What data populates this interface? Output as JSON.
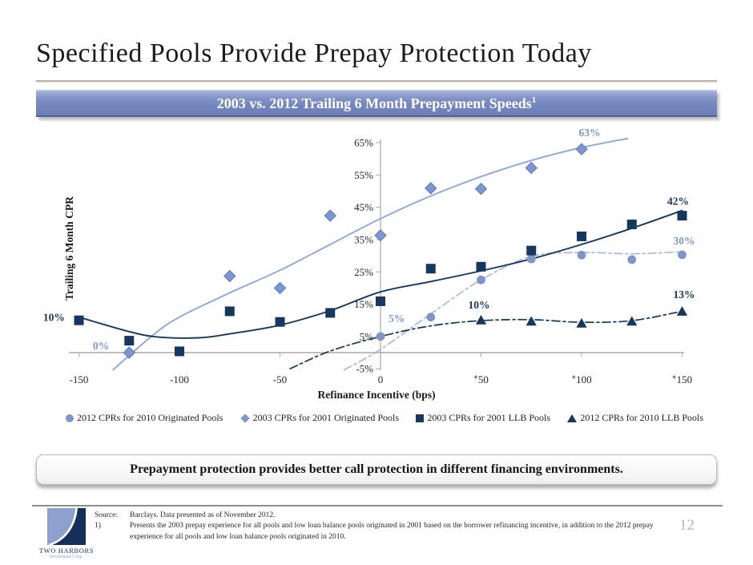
{
  "slide": {
    "title": "Specified Pools Provide Prepay Protection Today",
    "banner": "2003 vs. 2012 Trailing 6 Month Prepayment Speeds",
    "banner_superscript": "1",
    "message": "Prepayment protection provides better call protection in different financing environments.",
    "page_number": "12"
  },
  "footer": {
    "source_label": "Source:",
    "source_text": "Barclays. Data presented as of November 2012.",
    "note_label": "1)",
    "note_text": "Presents the 2003 prepay experience for all pools and low loan balance pools originated in 2001 based on the borrower refinancing incentive, in addition to the 2012 prepay experience for all pools and low loan balance pools originated in 2010.",
    "logo_title": "TWO HARBORS",
    "logo_subtitle": "Investment Corp."
  },
  "theme": {
    "navy": "#17375e",
    "light": "#8098d0",
    "light_marker": "#8094c8",
    "diamond_fill": "#7e96d0",
    "diamond_stroke": "#5b79b4",
    "light_line": "#8fa5dc",
    "light_dash_line": "#aab8e4",
    "axis": "#a8a8a8",
    "tick_text": "#262626",
    "axis_title": "#1a1a1a"
  },
  "chart_data": {
    "type": "scatter",
    "title": "2003 vs. 2012 Trailing 6 Month Prepayment Speeds",
    "xlabel": "Refinance Incentive (bps)",
    "ylabel": "Trailing 6 Month CPR",
    "x_range_bps": [
      -150,
      150
    ],
    "y_range_pct": [
      -5,
      65
    ],
    "grid": false,
    "legend_position": "bottom",
    "x_axis": {
      "from": -155,
      "to": 151
    },
    "y_axis": {
      "top": 66,
      "bottom": -5.5
    },
    "x_ticks": [
      {
        "bps": -150,
        "label": "-150"
      },
      {
        "bps": -100,
        "label": "-100"
      },
      {
        "bps": -50,
        "label": "-50"
      },
      {
        "bps": 0,
        "label": "0"
      },
      {
        "bps": 50,
        "label": "+50"
      },
      {
        "bps": 100,
        "label": "+100"
      },
      {
        "bps": 150,
        "label": "+150"
      }
    ],
    "y_ticks": [
      {
        "value": 65,
        "label": "65%"
      },
      {
        "value": 55,
        "label": "55%"
      },
      {
        "value": 45,
        "label": "45%"
      },
      {
        "value": 35,
        "label": "35%"
      },
      {
        "value": 25,
        "label": "25%"
      },
      {
        "value": 15,
        "label": "15%"
      },
      {
        "value": 5,
        "label": "5%"
      },
      {
        "value": -5,
        "label": "-5%"
      }
    ],
    "series": [
      {
        "id": "cpr2012-originated",
        "name": "2012 CPRs for 2010 Originated Pools",
        "marker": "circle",
        "color": "#8094c8",
        "trend_color": "#aab8e4",
        "trend_dash": "10 4 3 4",
        "points": [
          [
            0,
            5
          ],
          [
            25,
            11
          ],
          [
            50,
            22.5
          ],
          [
            75,
            29
          ],
          [
            100,
            30.2
          ],
          [
            125,
            28.8
          ],
          [
            150,
            30.3
          ]
        ],
        "trend": [
          [
            -18,
            -5.3
          ],
          [
            0,
            1
          ],
          [
            25,
            12
          ],
          [
            50,
            22.5
          ],
          [
            75,
            29.8
          ],
          [
            100,
            31
          ],
          [
            125,
            30.6
          ],
          [
            150,
            31.2
          ]
        ]
      },
      {
        "id": "cpr2003-originated",
        "name": "2003 CPRs for 2001 Originated Pools",
        "marker": "diamond",
        "color": "#7e96d0",
        "stroke": "#5b79b4",
        "trend_color": "#8fa5dc",
        "trend_dash": "",
        "points": [
          [
            -125,
            0
          ],
          [
            -75,
            23.7
          ],
          [
            -50,
            20
          ],
          [
            -25,
            42.4
          ],
          [
            0,
            36.3
          ],
          [
            25,
            50.9
          ],
          [
            50,
            50.7
          ],
          [
            75,
            57.2
          ],
          [
            100,
            63
          ]
        ],
        "trend": [
          [
            -133,
            -5.3
          ],
          [
            -113,
            5.5
          ],
          [
            -100,
            11
          ],
          [
            -75,
            18.5
          ],
          [
            -50,
            25.5
          ],
          [
            -25,
            33.5
          ],
          [
            0,
            41.5
          ],
          [
            25,
            48.5
          ],
          [
            50,
            54.5
          ],
          [
            75,
            59.5
          ],
          [
            100,
            63.5
          ],
          [
            123,
            66.3
          ]
        ]
      },
      {
        "id": "cpr2003-llb",
        "name": "2003 CPRs for 2001 LLB Pools",
        "marker": "square",
        "color": "#17375e",
        "trend_color": "#17375e",
        "trend_dash": "",
        "points": [
          [
            -150,
            10
          ],
          [
            -125,
            3.7
          ],
          [
            -100,
            0.4
          ],
          [
            -75,
            12.8
          ],
          [
            -50,
            9.5
          ],
          [
            -25,
            12.3
          ],
          [
            0,
            15.9
          ],
          [
            25,
            26
          ],
          [
            50,
            26.6
          ],
          [
            75,
            31.6
          ],
          [
            100,
            36
          ],
          [
            125,
            39.7
          ],
          [
            150,
            42.4
          ]
        ],
        "trend": [
          [
            -150,
            11
          ],
          [
            -125,
            6.5
          ],
          [
            -110,
            4.8
          ],
          [
            -90,
            4.6
          ],
          [
            -75,
            5.8
          ],
          [
            -50,
            8.5
          ],
          [
            -25,
            13
          ],
          [
            0,
            18.8
          ],
          [
            25,
            22
          ],
          [
            50,
            25.3
          ],
          [
            75,
            29
          ],
          [
            100,
            33.5
          ],
          [
            125,
            38.5
          ],
          [
            150,
            44
          ]
        ]
      },
      {
        "id": "cpr2012-llb",
        "name": "2012 CPRs for 2010 LLB Pools",
        "marker": "triangle",
        "color": "#17375e",
        "trend_color": "#17375e",
        "trend_dash": "10 4 3 4",
        "points": [
          [
            50,
            10.1
          ],
          [
            75,
            9.7
          ],
          [
            100,
            9.1
          ],
          [
            125,
            9.7
          ],
          [
            150,
            12.8
          ]
        ],
        "trend": [
          [
            -45,
            -5
          ],
          [
            -25,
            0.5
          ],
          [
            0,
            5
          ],
          [
            25,
            8.3
          ],
          [
            50,
            9.9
          ],
          [
            75,
            10.2
          ],
          [
            100,
            9.4
          ],
          [
            125,
            9.9
          ],
          [
            150,
            12.8
          ]
        ]
      }
    ],
    "labels": [
      {
        "text": "10%",
        "bps": -157,
        "pct": 9.8,
        "color": "navy",
        "anchor": "end"
      },
      {
        "text": "0%",
        "bps": -139,
        "pct": 1.0,
        "color": "light",
        "anchor": "middle"
      },
      {
        "text": "5%",
        "bps": 4,
        "pct": 9.4,
        "color": "light",
        "anchor": "start"
      },
      {
        "text": "10%",
        "bps": 49,
        "pct": 13.6,
        "color": "navy",
        "anchor": "middle"
      },
      {
        "text": "63%",
        "bps": 104,
        "pct": 67.0,
        "color": "light",
        "anchor": "middle"
      },
      {
        "text": "42%",
        "bps": 148,
        "pct": 45.8,
        "color": "navy",
        "anchor": "middle"
      },
      {
        "text": "30%",
        "bps": 151,
        "pct": 33.5,
        "color": "light",
        "anchor": "middle"
      },
      {
        "text": "13%",
        "bps": 151,
        "pct": 16.9,
        "color": "navy",
        "anchor": "middle"
      }
    ]
  }
}
